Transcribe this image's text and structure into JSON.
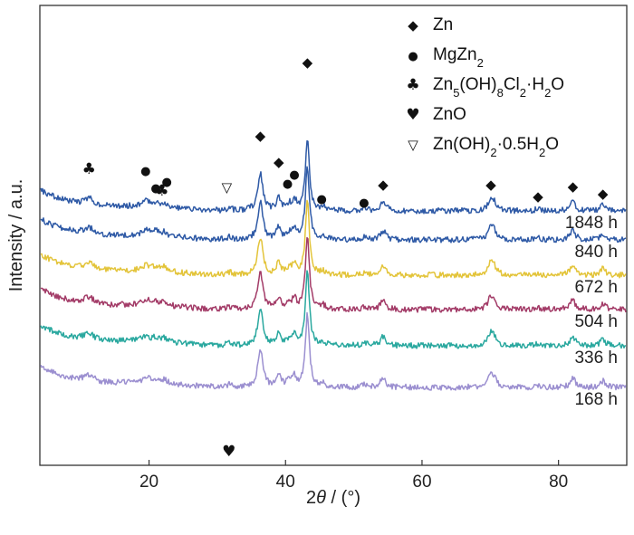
{
  "chart_data": {
    "type": "line",
    "xlabel": {
      "pre": "2",
      "theta": "θ",
      "post": " / (°)"
    },
    "ylabel": "Intensity / a.u.",
    "xlim": [
      4,
      90
    ],
    "x_ticks": [
      20,
      40,
      60,
      80
    ],
    "grid": false,
    "legend_position": "top-right",
    "legend": [
      {
        "symbol": "◆",
        "name": "Zn",
        "label": "Zn"
      },
      {
        "symbol": "●",
        "name": "MgZn2",
        "label": {
          "a": "MgZn",
          "s1": "2"
        }
      },
      {
        "symbol": "♣",
        "name": "Zn5(OH)8Cl2·H2O",
        "label": {
          "a": "Zn",
          "s1": "5",
          "b": "(OH)",
          "s2": "8",
          "c": "Cl",
          "s3": "2",
          "d": "·H",
          "s4": "2",
          "e": "O"
        }
      },
      {
        "symbol": "♥",
        "name": "ZnO",
        "label": "ZnO"
      },
      {
        "symbol": "▽",
        "name": "Zn(OH)2·0.5H2O",
        "label": {
          "a": "Zn(OH)",
          "s1": "2",
          "b": "·0.5H",
          "s2": "2",
          "c": "O"
        }
      }
    ],
    "series": [
      {
        "label": "1848 h",
        "color": "#2f5aa6"
      },
      {
        "label": "840 h",
        "color": "#2f5aa6"
      },
      {
        "label": "672 h",
        "color": "#e3c43a"
      },
      {
        "label": "504 h",
        "color": "#a33c68"
      },
      {
        "label": "336 h",
        "color": "#2aa89f"
      },
      {
        "label": "168 h",
        "color": "#9b8fd0"
      }
    ],
    "peaks": [
      {
        "x": 11.2,
        "h": 0.65,
        "w": 0.9
      },
      {
        "x": 19.6,
        "h": 0.5,
        "w": 0.6
      },
      {
        "x": 21.0,
        "h": 0.35,
        "w": 0.5
      },
      {
        "x": 22.2,
        "h": 0.35,
        "w": 0.5
      },
      {
        "x": 31.8,
        "h": 0.25,
        "w": 0.4
      },
      {
        "x": 36.3,
        "h": 3.6,
        "w": 0.45
      },
      {
        "x": 39.0,
        "h": 1.1,
        "w": 0.4
      },
      {
        "x": 40.5,
        "h": 0.5,
        "w": 0.4
      },
      {
        "x": 41.3,
        "h": 0.9,
        "w": 0.4
      },
      {
        "x": 43.2,
        "h": 7.0,
        "w": 0.35
      },
      {
        "x": 45.5,
        "h": 0.35,
        "w": 0.4
      },
      {
        "x": 51.5,
        "h": 0.2,
        "w": 0.5
      },
      {
        "x": 54.3,
        "h": 0.9,
        "w": 0.45
      },
      {
        "x": 70.1,
        "h": 1.1,
        "w": 0.5
      },
      {
        "x": 70.6,
        "h": 0.5,
        "w": 0.5
      },
      {
        "x": 77.0,
        "h": 0.2,
        "w": 0.5
      },
      {
        "x": 82.1,
        "h": 0.9,
        "w": 0.45
      },
      {
        "x": 86.5,
        "h": 0.6,
        "w": 0.45
      }
    ],
    "annotations": [
      {
        "symbol": "♣",
        "x": 11.2
      },
      {
        "symbol": "●",
        "x": 19.5
      },
      {
        "symbol": "●",
        "x": 21.0
      },
      {
        "symbol": "♣",
        "x": 21.9
      },
      {
        "symbol": "●",
        "x": 22.6
      },
      {
        "symbol": "▽",
        "x": 31.4
      },
      {
        "symbol": "◆",
        "x": 36.3
      },
      {
        "symbol": "◆",
        "x": 39.0
      },
      {
        "symbol": "●",
        "x": 40.3
      },
      {
        "symbol": "●",
        "x": 41.3
      },
      {
        "symbol": "◆",
        "x": 43.2
      },
      {
        "symbol": "●",
        "x": 45.3
      },
      {
        "symbol": "●",
        "x": 51.5
      },
      {
        "symbol": "◆",
        "x": 54.3
      },
      {
        "symbol": "◆",
        "x": 70.1
      },
      {
        "symbol": "◆",
        "x": 77.0
      },
      {
        "symbol": "◆",
        "x": 82.1
      },
      {
        "symbol": "◆",
        "x": 86.5
      },
      {
        "symbol": "♥",
        "x": 31.7
      }
    ]
  }
}
